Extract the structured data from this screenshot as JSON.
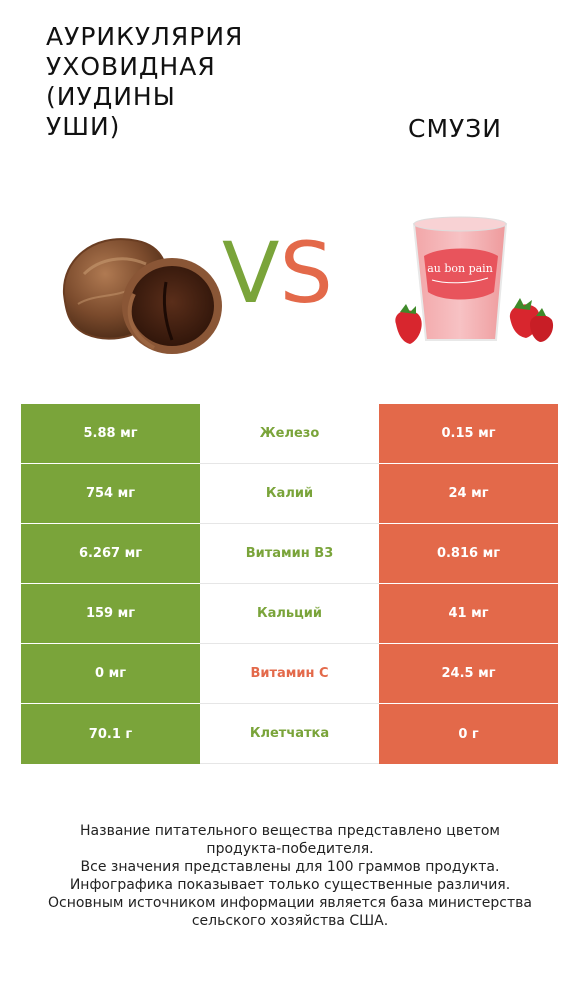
{
  "header": {
    "left_title_lines": [
      "АУРИКУЛЯРИЯ",
      "УХОВИДНАЯ",
      "(ИУДИНЫ",
      "УШИ)"
    ],
    "right_title": "СМУЗИ",
    "vs_v": "V",
    "vs_s": "S",
    "cup_label": "au bon pain"
  },
  "colors": {
    "left": "#7aa43a",
    "right": "#e3694a"
  },
  "rows": [
    {
      "left": "5.88 мг",
      "nutrient": "Железо",
      "right": "0.15 мг",
      "winner": "left"
    },
    {
      "left": "754 мг",
      "nutrient": "Калий",
      "right": "24 мг",
      "winner": "left"
    },
    {
      "left": "6.267 мг",
      "nutrient": "Витамин B3",
      "right": "0.816 мг",
      "winner": "left"
    },
    {
      "left": "159 мг",
      "nutrient": "Кальций",
      "right": "41 мг",
      "winner": "left"
    },
    {
      "left": "0 мг",
      "nutrient": "Витамин C",
      "right": "24.5 мг",
      "winner": "right"
    },
    {
      "left": "70.1 г",
      "nutrient": "Клетчатка",
      "right": "0 г",
      "winner": "left"
    }
  ],
  "footer": {
    "lines": [
      "Название питательного вещества представлено цветом",
      "продукта-победителя.",
      "Все значения представлены для 100 граммов продукта.",
      "Инфографика показывает только существенные различия.",
      "Основным источником информации является база министерства",
      "сельского хозяйства США."
    ]
  }
}
